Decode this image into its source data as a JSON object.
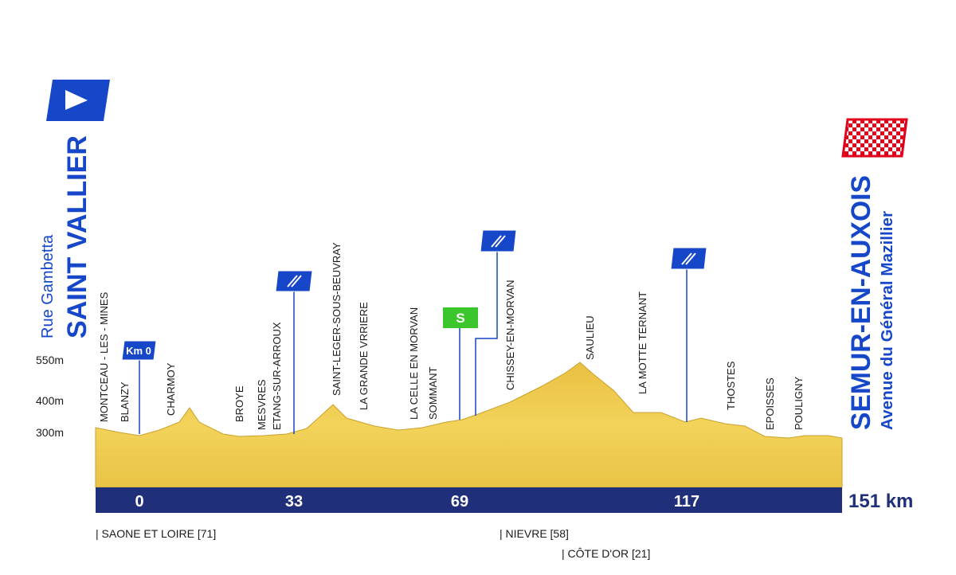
{
  "start": {
    "street": "Rue Gambetta",
    "town": "SAINT VALLIER"
  },
  "finish": {
    "town": "SEMUR-EN-AUXOIS",
    "street": "Avenue du Général Mazillier"
  },
  "altitudes": [
    "550m",
    "400m",
    "300m"
  ],
  "places": [
    "MONTCEAU - LES - MINES",
    "BLANZY",
    "CHARMOY",
    "BROYE",
    "MESVRES",
    "ETANG-SUR-ARROUX",
    "SAINT-LEGER-SOUS-BEUVRAY",
    "LA GRANDE VRRIERE",
    "LA CELLE EN MORVAN",
    "SOMMANT",
    "CHISSEY-EN-MORVAN",
    "SAULIEU",
    "LA MOTTE TERNANT",
    "THOSTES",
    "EPOISSES",
    "POULIGNY"
  ],
  "markers": {
    "km0": "Km 0",
    "sprint": "S"
  },
  "distances": [
    0,
    33,
    69,
    117
  ],
  "total": "151 km",
  "departments": [
    "| SAONE ET LOIRE [71]",
    "| NIEVRE [58]",
    "| CÔTE D'OR [21]"
  ]
}
